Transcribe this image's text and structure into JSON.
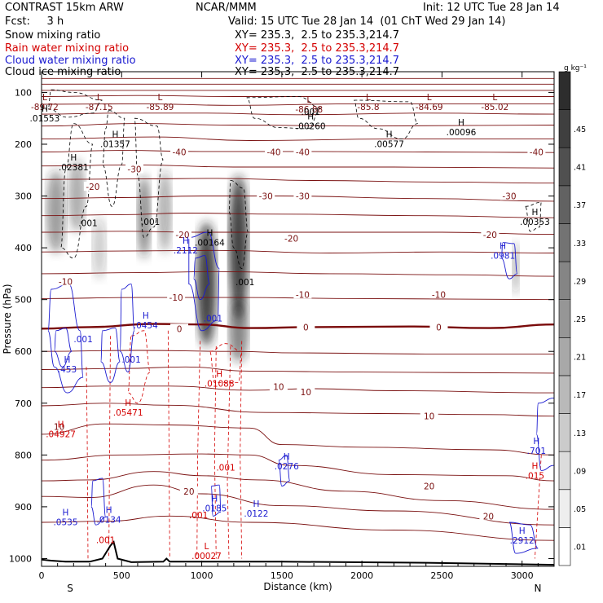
{
  "header": {
    "model": "CONTRAST 15km ARW",
    "forecast": "Fcst:     3 h",
    "org": "NCAR/MMM",
    "init": "Init: 12 UTC Tue 28 Jan 14",
    "valid": "Valid: 15 UTC Tue 28 Jan 14  (01 ChT Wed 29 Jan 14)"
  },
  "fields": [
    {
      "name": "Snow mixing ratio",
      "xy": "XY= 235.3,  2.5 to 235.3,214.7",
      "color": "#000000"
    },
    {
      "name": "Rain water mixing ratio",
      "xy": "XY= 235.3,  2.5 to 235.3,214.7",
      "color": "#d40000"
    },
    {
      "name": "Cloud water mixing ratio",
      "xy": "XY= 235.3,  2.5 to 235.3,214.7",
      "color": "#1a1ad0"
    },
    {
      "name": "Cloud ice mixing ratio",
      "xy": "XY= 235.3,  2.5 to 235.3,214.7",
      "color": "#000000"
    }
  ],
  "chart_data": {
    "type": "cross-section",
    "xlabel": "Distance (km)",
    "ylabel": "Pressure (hPa)",
    "xlim": [
      0,
      3200
    ],
    "ylim": [
      1015,
      60
    ],
    "x_ticks": [
      0,
      500,
      1000,
      1500,
      2000,
      2500,
      3000
    ],
    "y_ticks": [
      100,
      200,
      300,
      400,
      500,
      600,
      700,
      800,
      900,
      1000
    ],
    "endpoint_labels": {
      "left": "S",
      "right": "N"
    },
    "colorbar": {
      "unit": "g kg⁻¹",
      "levels": [
        ".01",
        ".05",
        ".09",
        ".13",
        ".17",
        ".21",
        ".25",
        ".29",
        ".33",
        ".37",
        ".41",
        ".45"
      ]
    },
    "temperature_contours": [
      {
        "value": -40,
        "label": "-40"
      },
      {
        "value": -30,
        "label": "-30"
      },
      {
        "value": -20,
        "label": "-20"
      },
      {
        "value": -10,
        "label": "-10"
      },
      {
        "value": 0,
        "label": "0"
      },
      {
        "value": 10,
        "label": "10"
      },
      {
        "value": 20,
        "label": "20"
      }
    ],
    "max_min_labels": [
      {
        "kind": "L",
        "value": "-89.72",
        "x": 20,
        "p": 118,
        "color": "dark"
      },
      {
        "kind": "L",
        "value": "-87.15",
        "x": 360,
        "p": 118,
        "color": "dark"
      },
      {
        "kind": "L",
        "value": "-85.89",
        "x": 740,
        "p": 118,
        "color": "dark"
      },
      {
        "kind": "L",
        "value": "-86.88",
        "x": 1670,
        "p": 123,
        "color": "dark"
      },
      {
        "kind": "L",
        "value": "-85.8",
        "x": 2040,
        "p": 118,
        "color": "dark"
      },
      {
        "kind": "L",
        "value": "-84.69",
        "x": 2420,
        "p": 118,
        "color": "dark"
      },
      {
        "kind": "L",
        "value": "-85.02",
        "x": 2830,
        "p": 118,
        "color": "dark"
      },
      {
        "kind": "H",
        "value": ".01553",
        "x": 20,
        "p": 140,
        "color": "black"
      },
      {
        "kind": "H",
        "value": ".01357",
        "x": 460,
        "p": 190,
        "color": "black"
      },
      {
        "kind": "H",
        "value": ".00260",
        "x": 1680,
        "p": 155,
        "color": "black"
      },
      {
        "kind": "H",
        "value": ".00577",
        "x": 2170,
        "p": 190,
        "color": "black"
      },
      {
        "kind": "H",
        "value": ".00096",
        "x": 2620,
        "p": 167,
        "color": "black"
      },
      {
        "kind": "H",
        "value": ".02381",
        "x": 200,
        "p": 235,
        "color": "black"
      },
      {
        "kind": "H",
        "value": ".00164",
        "x": 1050,
        "p": 380,
        "color": "black"
      },
      {
        "kind": "H",
        "value": ".00353",
        "x": 3080,
        "p": 340,
        "color": "black"
      },
      {
        "kind": "H",
        "value": ".2112",
        "x": 900,
        "p": 395,
        "color": "blue"
      },
      {
        "kind": "H",
        "value": ".0981",
        "x": 2880,
        "p": 405,
        "color": "blue"
      },
      {
        "kind": "H",
        "value": ".0454",
        "x": 650,
        "p": 540,
        "color": "blue"
      },
      {
        "kind": "H",
        "value": ".453",
        "x": 160,
        "p": 625,
        "color": "blue"
      },
      {
        "kind": "H",
        "value": ".01088",
        "x": 1110,
        "p": 652,
        "color": "red"
      },
      {
        "kind": "H",
        "value": ".05471",
        "x": 540,
        "p": 708,
        "color": "red"
      },
      {
        "kind": "H",
        "value": ".04927",
        "x": 120,
        "p": 750,
        "color": "red"
      },
      {
        "kind": "H",
        "value": ".0276",
        "x": 1530,
        "p": 812,
        "color": "blue"
      },
      {
        "kind": "H",
        "value": ".0185",
        "x": 1080,
        "p": 893,
        "color": "blue"
      },
      {
        "kind": "H",
        "value": ".0122",
        "x": 1340,
        "p": 903,
        "color": "blue"
      },
      {
        "kind": "H",
        "value": ".0535",
        "x": 150,
        "p": 920,
        "color": "blue"
      },
      {
        "kind": "H",
        "value": ".0134",
        "x": 420,
        "p": 915,
        "color": "blue"
      },
      {
        "kind": "H",
        "value": ".2912",
        "x": 3000,
        "p": 955,
        "color": "blue"
      },
      {
        "kind": "H",
        "value": ".701",
        "x": 3090,
        "p": 782,
        "color": "blue"
      },
      {
        "kind": "H",
        "value": ".015",
        "x": 3080,
        "p": 830,
        "color": "red"
      },
      {
        "kind": "L",
        "value": ".00027",
        "x": 1030,
        "p": 985,
        "color": "red"
      }
    ],
    "contour_labels": [
      {
        "text": ".001",
        "x": 1680,
        "p": 143,
        "color": "black"
      },
      {
        "text": ".001",
        "x": 290,
        "p": 358,
        "color": "black"
      },
      {
        "text": ".001",
        "x": 680,
        "p": 356,
        "color": "black"
      },
      {
        "text": ".001",
        "x": 1270,
        "p": 472,
        "color": "black"
      },
      {
        "text": ".001",
        "x": 260,
        "p": 582,
        "color": "blue"
      },
      {
        "text": ".001",
        "x": 560,
        "p": 622,
        "color": "blue"
      },
      {
        "text": ".001",
        "x": 1070,
        "p": 542,
        "color": "blue"
      },
      {
        "text": ".001",
        "x": 1150,
        "p": 830,
        "color": "red"
      },
      {
        "text": ".001",
        "x": 980,
        "p": 922,
        "color": "red"
      },
      {
        "text": ".001",
        "x": 400,
        "p": 970,
        "color": "red"
      }
    ]
  }
}
